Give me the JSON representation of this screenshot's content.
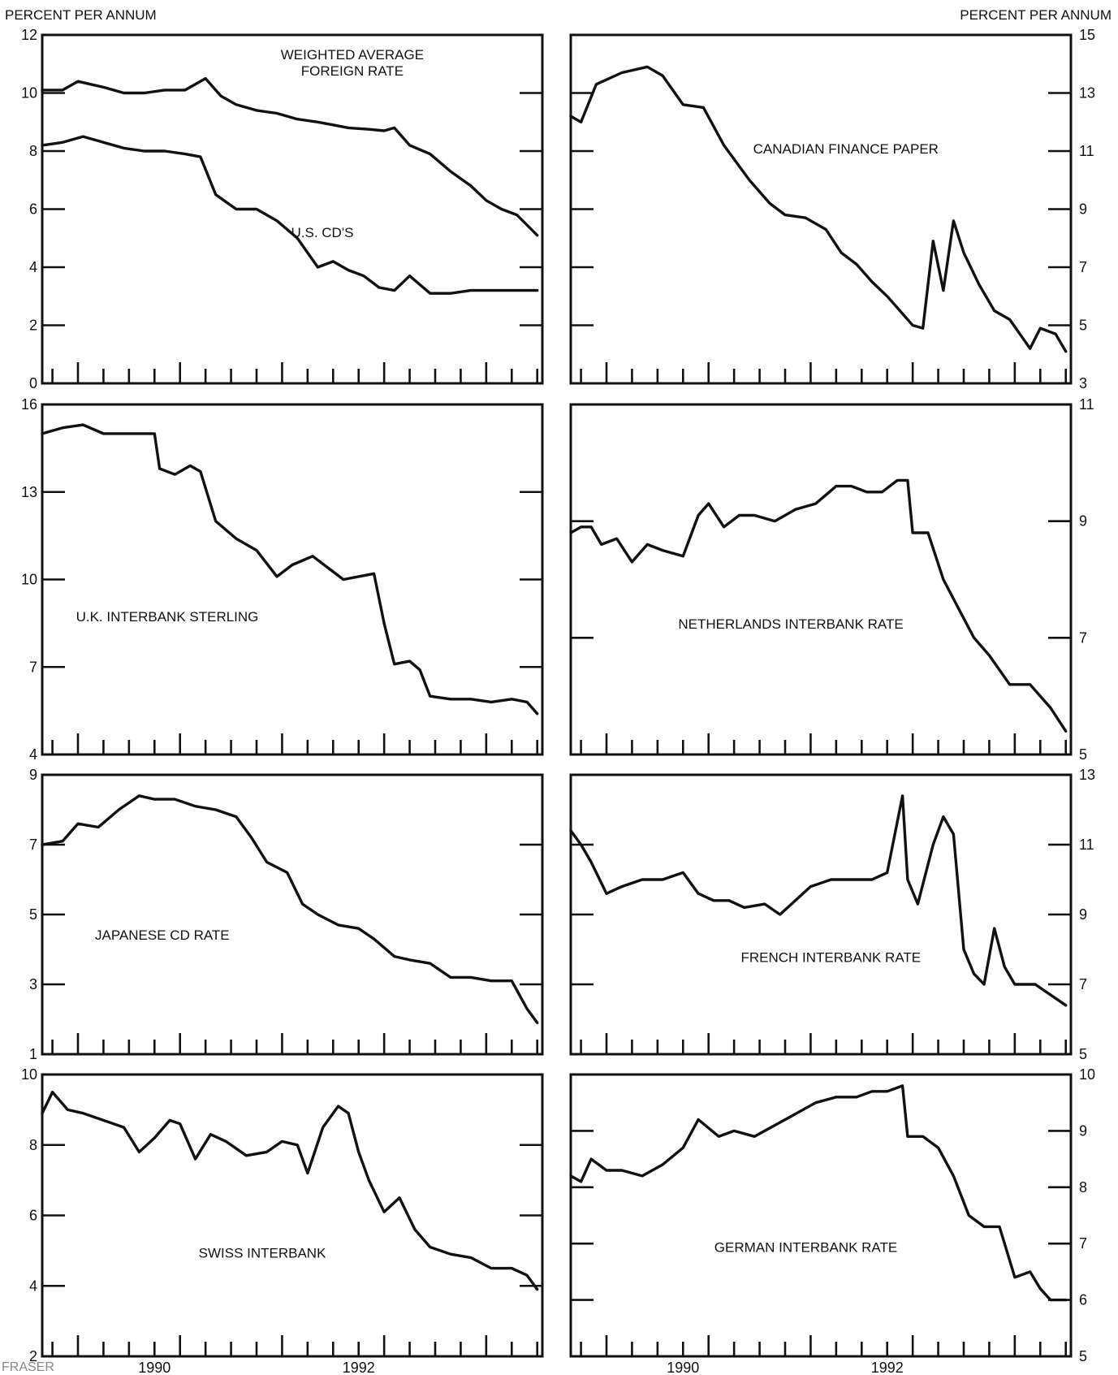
{
  "header": {
    "left_unit": "PERCENT PER ANNUM",
    "right_unit": "PERCENT PER ANNUM"
  },
  "watermark": "FRASER",
  "chart_data": [
    {
      "type": "line",
      "label": "WEIGHTED AVERAGE\nFOREIGN RATE",
      "ylim": [
        0,
        12
      ],
      "yticks": [
        0,
        2,
        4,
        6,
        8,
        10,
        12
      ],
      "yaxis": "left",
      "x_tick_labels": [],
      "series": [
        {
          "name": "WEIGHTED AVERAGE FOREIGN RATE",
          "x": [
            1989.0,
            1989.2,
            1989.35,
            1989.6,
            1989.8,
            1990.0,
            1990.2,
            1990.4,
            1990.6,
            1990.75,
            1990.9,
            1991.1,
            1991.3,
            1991.5,
            1991.7,
            1991.85,
            1992.0,
            1992.2,
            1992.35,
            1992.45,
            1992.6,
            1992.8,
            1993.0,
            1993.2,
            1993.35,
            1993.5,
            1993.65,
            1993.85
          ],
          "y": [
            10.1,
            10.1,
            10.4,
            10.2,
            10.0,
            10.0,
            10.1,
            10.1,
            10.5,
            9.9,
            9.6,
            9.4,
            9.3,
            9.1,
            9.0,
            8.9,
            8.8,
            8.75,
            8.7,
            8.8,
            8.2,
            7.9,
            7.3,
            6.8,
            6.3,
            6.0,
            5.8,
            5.1
          ]
        },
        {
          "name": "U.S. CD'S",
          "x": [
            1989.0,
            1989.2,
            1989.4,
            1989.6,
            1989.8,
            1990.0,
            1990.2,
            1990.4,
            1990.55,
            1990.7,
            1990.9,
            1991.1,
            1991.3,
            1991.5,
            1991.7,
            1991.85,
            1992.0,
            1992.15,
            1992.3,
            1992.45,
            1992.6,
            1992.8,
            1993.0,
            1993.2,
            1993.4,
            1993.6,
            1993.85
          ],
          "y": [
            8.2,
            8.3,
            8.5,
            8.3,
            8.1,
            8.0,
            8.0,
            7.9,
            7.8,
            6.5,
            6.0,
            6.0,
            5.6,
            5.0,
            4.0,
            4.2,
            3.9,
            3.7,
            3.3,
            3.2,
            3.7,
            3.1,
            3.1,
            3.2,
            3.2,
            3.2,
            3.2
          ]
        }
      ]
    },
    {
      "type": "line",
      "label": "CANADIAN FINANCE PAPER",
      "ylim": [
        3,
        15
      ],
      "yticks": [
        3,
        5,
        7,
        9,
        11,
        13,
        15
      ],
      "yaxis": "right",
      "x_tick_labels": [],
      "series": [
        {
          "name": "CANADIAN FINANCE PAPER",
          "x": [
            1989.0,
            1989.1,
            1989.25,
            1989.5,
            1989.75,
            1989.9,
            1990.1,
            1990.3,
            1990.5,
            1990.75,
            1990.95,
            1991.1,
            1991.3,
            1991.5,
            1991.65,
            1991.8,
            1991.95,
            1992.1,
            1992.25,
            1992.35,
            1992.45,
            1992.55,
            1992.65,
            1992.75,
            1992.85,
            1993.0,
            1993.15,
            1993.3,
            1993.4,
            1993.5,
            1993.6,
            1993.75,
            1993.85
          ],
          "y": [
            12.2,
            12.0,
            13.3,
            13.7,
            13.9,
            13.6,
            12.6,
            12.5,
            11.2,
            10.0,
            9.2,
            8.8,
            8.7,
            8.3,
            7.5,
            7.1,
            6.5,
            6.0,
            5.4,
            5.0,
            4.9,
            7.9,
            6.2,
            8.6,
            7.5,
            6.4,
            5.5,
            5.2,
            4.7,
            4.2,
            4.9,
            4.7,
            4.1
          ]
        }
      ]
    },
    {
      "type": "line",
      "label": "U.K. INTERBANK STERLING",
      "ylim": [
        4,
        16
      ],
      "yticks": [
        4,
        7,
        10,
        13,
        16
      ],
      "yaxis": "left",
      "x_tick_labels": [],
      "series": [
        {
          "name": "U.K. INTERBANK STERLING",
          "x": [
            1989.0,
            1989.2,
            1989.4,
            1989.6,
            1989.8,
            1990.0,
            1990.1,
            1990.15,
            1990.3,
            1990.45,
            1990.55,
            1990.7,
            1990.9,
            1991.1,
            1991.3,
            1991.45,
            1991.65,
            1991.8,
            1991.95,
            1992.1,
            1992.25,
            1992.35,
            1992.45,
            1992.6,
            1992.7,
            1992.8,
            1993.0,
            1993.2,
            1993.4,
            1993.6,
            1993.75,
            1993.85
          ],
          "y": [
            15.0,
            15.2,
            15.3,
            15.0,
            15.0,
            15.0,
            15.0,
            13.8,
            13.6,
            13.9,
            13.7,
            12.0,
            11.4,
            11.0,
            10.1,
            10.5,
            10.8,
            10.4,
            10.0,
            10.1,
            10.2,
            8.5,
            7.1,
            7.2,
            6.9,
            6.0,
            5.9,
            5.9,
            5.8,
            5.9,
            5.8,
            5.4
          ]
        }
      ]
    },
    {
      "type": "line",
      "label": "NETHERLANDS INTERBANK RATE",
      "ylim": [
        5,
        11
      ],
      "yticks": [
        5,
        7,
        9,
        11
      ],
      "yaxis": "right",
      "x_tick_labels": [],
      "series": [
        {
          "name": "NETHERLANDS INTERBANK RATE",
          "x": [
            1989.0,
            1989.1,
            1989.2,
            1989.3,
            1989.45,
            1989.6,
            1989.75,
            1989.9,
            1990.1,
            1990.25,
            1990.35,
            1990.5,
            1990.65,
            1990.8,
            1991.0,
            1991.2,
            1991.4,
            1991.6,
            1991.75,
            1991.9,
            1992.05,
            1992.2,
            1992.3,
            1992.35,
            1992.5,
            1992.65,
            1992.8,
            1992.95,
            1993.1,
            1993.3,
            1993.5,
            1993.7,
            1993.85
          ],
          "y": [
            8.8,
            8.9,
            8.9,
            8.6,
            8.7,
            8.3,
            8.6,
            8.5,
            8.4,
            9.1,
            9.3,
            8.9,
            9.1,
            9.1,
            9.0,
            9.2,
            9.3,
            9.6,
            9.6,
            9.5,
            9.5,
            9.7,
            9.7,
            8.8,
            8.8,
            8.0,
            7.5,
            7.0,
            6.7,
            6.2,
            6.2,
            5.8,
            5.4
          ]
        }
      ]
    },
    {
      "type": "line",
      "label": "JAPANESE CD RATE",
      "ylim": [
        1,
        9
      ],
      "yticks": [
        1,
        3,
        5,
        7,
        9
      ],
      "yaxis": "left",
      "x_tick_labels": [],
      "series": [
        {
          "name": "JAPANESE CD RATE",
          "x": [
            1989.0,
            1989.2,
            1989.35,
            1989.55,
            1989.75,
            1989.95,
            1990.1,
            1990.3,
            1990.5,
            1990.7,
            1990.9,
            1991.05,
            1991.2,
            1991.4,
            1991.55,
            1991.7,
            1991.9,
            1992.1,
            1992.25,
            1992.45,
            1992.6,
            1992.8,
            1993.0,
            1993.2,
            1993.4,
            1993.6,
            1993.75,
            1993.85
          ],
          "y": [
            7.0,
            7.1,
            7.6,
            7.5,
            8.0,
            8.4,
            8.3,
            8.3,
            8.1,
            8.0,
            7.8,
            7.2,
            6.5,
            6.2,
            5.3,
            5.0,
            4.7,
            4.6,
            4.3,
            3.8,
            3.7,
            3.6,
            3.2,
            3.2,
            3.1,
            3.1,
            2.3,
            1.9
          ]
        }
      ]
    },
    {
      "type": "line",
      "label": "FRENCH INTERBANK RATE",
      "ylim": [
        5,
        13
      ],
      "yticks": [
        5,
        7,
        9,
        11,
        13
      ],
      "yaxis": "right",
      "x_tick_labels": [],
      "series": [
        {
          "name": "FRENCH INTERBANK RATE",
          "x": [
            1989.0,
            1989.1,
            1989.2,
            1989.35,
            1989.5,
            1989.7,
            1989.9,
            1990.1,
            1990.25,
            1990.4,
            1990.55,
            1990.7,
            1990.9,
            1991.05,
            1991.2,
            1991.35,
            1991.55,
            1991.75,
            1991.95,
            1992.1,
            1992.25,
            1992.3,
            1992.4,
            1992.55,
            1992.65,
            1992.75,
            1992.85,
            1992.95,
            1993.05,
            1993.15,
            1993.25,
            1993.35,
            1993.45,
            1993.55,
            1993.65,
            1993.75,
            1993.85
          ],
          "y": [
            11.4,
            11.0,
            10.5,
            9.6,
            9.8,
            10.0,
            10.0,
            10.2,
            9.6,
            9.4,
            9.4,
            9.2,
            9.3,
            9.0,
            9.4,
            9.8,
            10.0,
            10.0,
            10.0,
            10.2,
            12.4,
            10.0,
            9.3,
            11.0,
            11.8,
            11.3,
            8.0,
            7.3,
            7.0,
            8.6,
            7.5,
            7.0,
            7.0,
            7.0,
            6.8,
            6.6,
            6.4
          ]
        }
      ]
    },
    {
      "type": "line",
      "label": "SWISS INTERBANK",
      "ylim": [
        2,
        10
      ],
      "yticks": [
        2,
        4,
        6,
        8,
        10
      ],
      "yaxis": "left",
      "x_tick_labels": [
        "1990",
        "1992"
      ],
      "series": [
        {
          "name": "SWISS INTERBANK",
          "x": [
            1989.0,
            1989.1,
            1989.25,
            1989.4,
            1989.6,
            1989.8,
            1989.95,
            1990.1,
            1990.25,
            1990.35,
            1990.5,
            1990.65,
            1990.8,
            1991.0,
            1991.2,
            1991.35,
            1991.5,
            1991.6,
            1991.75,
            1991.9,
            1992.0,
            1992.1,
            1992.2,
            1992.35,
            1992.5,
            1992.65,
            1992.8,
            1993.0,
            1993.2,
            1993.4,
            1993.6,
            1993.75,
            1993.85
          ],
          "y": [
            8.9,
            9.5,
            9.0,
            8.9,
            8.7,
            8.5,
            7.8,
            8.2,
            8.7,
            8.6,
            7.6,
            8.3,
            8.1,
            7.7,
            7.8,
            8.1,
            8.0,
            7.2,
            8.5,
            9.1,
            8.9,
            7.8,
            7.0,
            6.1,
            6.5,
            5.6,
            5.1,
            4.9,
            4.8,
            4.5,
            4.5,
            4.3,
            3.9
          ]
        }
      ]
    },
    {
      "type": "line",
      "label": "GERMAN INTERBANK RATE",
      "ylim": [
        5,
        10
      ],
      "yticks": [
        5,
        6,
        7,
        8,
        9,
        10
      ],
      "yaxis": "right",
      "x_tick_labels": [
        "1990",
        "1992"
      ],
      "series": [
        {
          "name": "GERMAN INTERBANK RATE",
          "x": [
            1989.0,
            1989.1,
            1989.2,
            1989.35,
            1989.5,
            1989.7,
            1989.9,
            1990.1,
            1990.25,
            1990.45,
            1990.6,
            1990.8,
            1991.0,
            1991.2,
            1991.4,
            1991.6,
            1991.8,
            1991.95,
            1992.1,
            1992.25,
            1992.3,
            1992.45,
            1992.6,
            1992.75,
            1992.9,
            1993.05,
            1993.2,
            1993.35,
            1993.5,
            1993.6,
            1993.7,
            1993.85
          ],
          "y": [
            8.2,
            8.1,
            8.5,
            8.3,
            8.3,
            8.2,
            8.4,
            8.7,
            9.2,
            8.9,
            9.0,
            8.9,
            9.1,
            9.3,
            9.5,
            9.6,
            9.6,
            9.7,
            9.7,
            9.8,
            8.9,
            8.9,
            8.7,
            8.2,
            7.5,
            7.3,
            7.3,
            6.4,
            6.5,
            6.2,
            6.0,
            6.0
          ]
        }
      ]
    }
  ]
}
